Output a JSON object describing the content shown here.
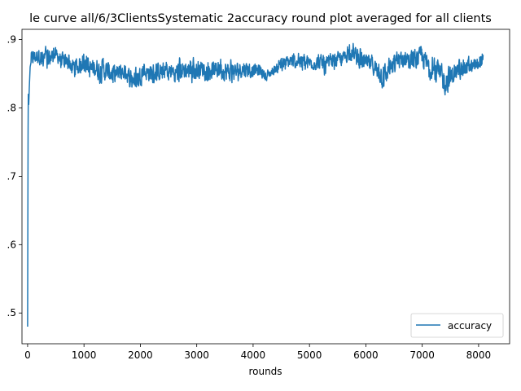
{
  "chart_data": {
    "type": "line",
    "title": "le curve all/6/3ClientsSystematic 2accuracy round plot averaged for all clients",
    "xlabel": "rounds",
    "ylabel": "",
    "xlim": [
      -100,
      8550
    ],
    "ylim": [
      0.455,
      0.915
    ],
    "x_ticks": [
      0,
      1000,
      2000,
      3000,
      4000,
      5000,
      6000,
      7000,
      8000
    ],
    "x_tick_labels": [
      "0",
      "1000",
      "2000",
      "3000",
      "4000",
      "5000",
      "6000",
      "7000",
      "8000"
    ],
    "y_ticks": [
      0.5,
      0.6,
      0.7,
      0.8,
      0.9
    ],
    "y_tick_labels": [
      ".5",
      ".6",
      ".7",
      ".8",
      ".9"
    ],
    "grid": false,
    "legend": {
      "position": "lower-right",
      "entries": [
        "accuracy"
      ]
    },
    "colors": {
      "accuracy": "#1f77b4"
    },
    "series": [
      {
        "name": "accuracy",
        "envelope_x": [
          0,
          30,
          60,
          100,
          200,
          300,
          400,
          500,
          600,
          700,
          800,
          900,
          1000,
          1100,
          1200,
          1300,
          1400,
          1500,
          1600,
          1700,
          1800,
          1900,
          2000,
          2100,
          2200,
          2300,
          2400,
          2500,
          2600,
          2700,
          2800,
          2900,
          3000,
          3100,
          3200,
          3300,
          3400,
          3500,
          3600,
          3700,
          3800,
          3900,
          4000,
          4100,
          4200,
          4300,
          4400,
          4500,
          4600,
          4700,
          4800,
          4900,
          5000,
          5100,
          5200,
          5300,
          5400,
          5500,
          5600,
          5700,
          5800,
          5900,
          6000,
          6100,
          6200,
          6300,
          6400,
          6500,
          6600,
          6700,
          6800,
          6900,
          7000,
          7100,
          7200,
          7300,
          7400,
          7500,
          7600,
          7700,
          7800,
          7900,
          8000,
          8080
        ],
        "upper": [
          0.82,
          0.89,
          0.892,
          0.893,
          0.895,
          0.893,
          0.896,
          0.894,
          0.888,
          0.885,
          0.884,
          0.883,
          0.885,
          0.88,
          0.882,
          0.88,
          0.878,
          0.876,
          0.872,
          0.87,
          0.868,
          0.866,
          0.869,
          0.872,
          0.876,
          0.875,
          0.873,
          0.874,
          0.876,
          0.878,
          0.88,
          0.878,
          0.876,
          0.878,
          0.88,
          0.877,
          0.876,
          0.878,
          0.876,
          0.875,
          0.878,
          0.876,
          0.872,
          0.868,
          0.862,
          0.86,
          0.87,
          0.878,
          0.884,
          0.885,
          0.886,
          0.884,
          0.882,
          0.883,
          0.884,
          0.882,
          0.883,
          0.885,
          0.89,
          0.897,
          0.898,
          0.892,
          0.886,
          0.882,
          0.878,
          0.876,
          0.878,
          0.884,
          0.892,
          0.895,
          0.894,
          0.896,
          0.898,
          0.888,
          0.88,
          0.876,
          0.872,
          0.874,
          0.876,
          0.878,
          0.878,
          0.877,
          0.88,
          0.893
        ],
        "lower": [
          0.48,
          0.81,
          0.85,
          0.855,
          0.858,
          0.848,
          0.85,
          0.862,
          0.852,
          0.85,
          0.838,
          0.842,
          0.848,
          0.832,
          0.835,
          0.828,
          0.83,
          0.825,
          0.828,
          0.834,
          0.825,
          0.818,
          0.83,
          0.832,
          0.828,
          0.83,
          0.834,
          0.836,
          0.828,
          0.83,
          0.832,
          0.826,
          0.834,
          0.838,
          0.832,
          0.836,
          0.834,
          0.83,
          0.828,
          0.832,
          0.836,
          0.838,
          0.838,
          0.842,
          0.835,
          0.84,
          0.846,
          0.85,
          0.85,
          0.852,
          0.852,
          0.848,
          0.852,
          0.848,
          0.85,
          0.838,
          0.852,
          0.854,
          0.858,
          0.862,
          0.856,
          0.848,
          0.845,
          0.842,
          0.836,
          0.812,
          0.835,
          0.84,
          0.85,
          0.852,
          0.848,
          0.852,
          0.85,
          0.836,
          0.832,
          0.818,
          0.806,
          0.812,
          0.836,
          0.84,
          0.838,
          0.842,
          0.848,
          0.856
        ]
      }
    ]
  }
}
